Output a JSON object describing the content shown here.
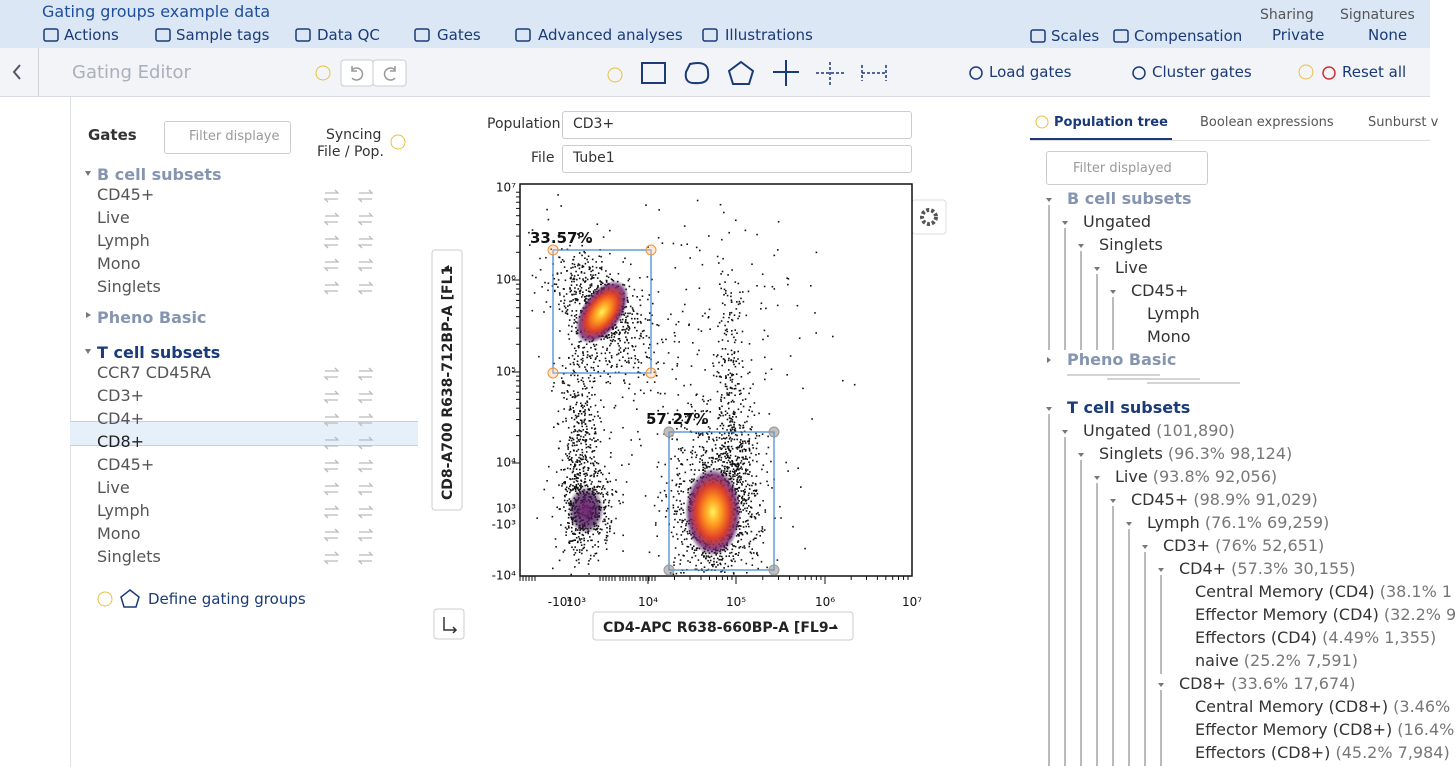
{
  "header": {
    "title": "Gating groups example data",
    "menu": [
      "Actions",
      "Sample tags",
      "Data QC",
      "Gates",
      "Advanced analyses",
      "Illustrations"
    ],
    "right_menu": [
      "Scales",
      "Compensation"
    ],
    "sharing": {
      "label": "Sharing",
      "value": "Private"
    },
    "signatures": {
      "label": "Signatures",
      "value": "None"
    }
  },
  "toolbar": {
    "title": "Gating Editor",
    "actions": [
      "Load gates",
      "Cluster gates",
      "Reset all"
    ]
  },
  "gates_panel": {
    "title": "Gates",
    "filter_placeholder": "Filter displaye",
    "syncing": "Syncing",
    "syncing_sub": "File / Pop.",
    "groups": [
      {
        "name": "B cell subsets",
        "expanded": true,
        "active": false,
        "items": [
          {
            "name": "CD45+"
          },
          {
            "name": "Live"
          },
          {
            "name": "Lymph"
          },
          {
            "name": "Mono"
          },
          {
            "name": "Singlets"
          }
        ]
      },
      {
        "name": "Pheno Basic",
        "expanded": false,
        "active": false,
        "items": []
      },
      {
        "name": "T cell subsets",
        "expanded": true,
        "active": true,
        "items": [
          {
            "name": "CCR7 CD45RA"
          },
          {
            "name": "CD3+"
          },
          {
            "name": "CD4+"
          },
          {
            "name": "CD8+",
            "selected": true
          },
          {
            "name": "CD45+"
          },
          {
            "name": "Live"
          },
          {
            "name": "Lymph"
          },
          {
            "name": "Mono"
          },
          {
            "name": "Singlets"
          }
        ]
      }
    ],
    "define": "Define gating groups"
  },
  "plot": {
    "population_label": "Population",
    "population": "CD3+",
    "file_label": "File",
    "file": "Tube1",
    "y_label": "CD8-A700 R638-712BP-A [FL1",
    "x_label": "CD4-APC R638-660BP-A [FL9-",
    "y_ticks": [
      "10⁷",
      "10⁶",
      "10⁵",
      "10⁴",
      "10³",
      "-10³",
      "-10⁴"
    ],
    "x_ticks": [
      "-10⁴",
      "10³",
      "10⁴",
      "10⁵",
      "10⁶",
      "10⁷"
    ],
    "gates": [
      {
        "label": "33.57%"
      },
      {
        "label": "57.27%"
      }
    ]
  },
  "tree": {
    "tabs": [
      "Population tree",
      "Boolean expressions",
      "Sunburst v"
    ],
    "filter_placeholder": "Filter displayed",
    "nodes": [
      {
        "name": "B cell subsets",
        "active": false,
        "children": [
          {
            "name": "Ungated",
            "children": [
              {
                "name": "Singlets",
                "children": [
                  {
                    "name": "Live",
                    "children": [
                      {
                        "name": "CD45+",
                        "children": [
                          {
                            "name": "Lymph"
                          },
                          {
                            "name": "Mono"
                          }
                        ]
                      }
                    ]
                  }
                ]
              }
            ]
          }
        ]
      },
      {
        "name": "Pheno Basic",
        "active": false,
        "expanded": false
      },
      {
        "name": "T cell subsets",
        "active": true,
        "children": [
          {
            "name": "Ungated",
            "stats": "(101,890)",
            "children": [
              {
                "name": "Singlets",
                "stats": "(96.3%  98,124)",
                "children": [
                  {
                    "name": "Live",
                    "stats": "(93.8%  92,056)",
                    "children": [
                      {
                        "name": "CD45+",
                        "stats": "(98.9%  91,029)",
                        "children": [
                          {
                            "name": "Lymph",
                            "stats": "(76.1%  69,259)",
                            "children": [
                              {
                                "name": "CD3+",
                                "stats": "(76%  52,651)",
                                "children": [
                                  {
                                    "name": "CD4+",
                                    "stats": "(57.3%  30,155)",
                                    "children": [
                                      {
                                        "name": "Central Memory (CD4)",
                                        "stats": "(38.1%  1"
                                      },
                                      {
                                        "name": "Effector Memory (CD4)",
                                        "stats": "(32.2%  9"
                                      },
                                      {
                                        "name": "Effectors (CD4)",
                                        "stats": "(4.49%  1,355)"
                                      },
                                      {
                                        "name": "naive",
                                        "stats": "(25.2%  7,591)"
                                      }
                                    ]
                                  },
                                  {
                                    "name": "CD8+",
                                    "stats": "(33.6%  17,674)",
                                    "children": [
                                      {
                                        "name": "Central Memory (CD8+)",
                                        "stats": "(3.46%"
                                      },
                                      {
                                        "name": "Effector Memory (CD8+)",
                                        "stats": "(16.4%"
                                      },
                                      {
                                        "name": "Effectors (CD8+)",
                                        "stats": "(45.2%  7,984)"
                                      }
                                    ]
                                  }
                                ]
                              }
                            ]
                          }
                        ]
                      }
                    ]
                  }
                ]
              }
            ]
          }
        ]
      }
    ]
  }
}
